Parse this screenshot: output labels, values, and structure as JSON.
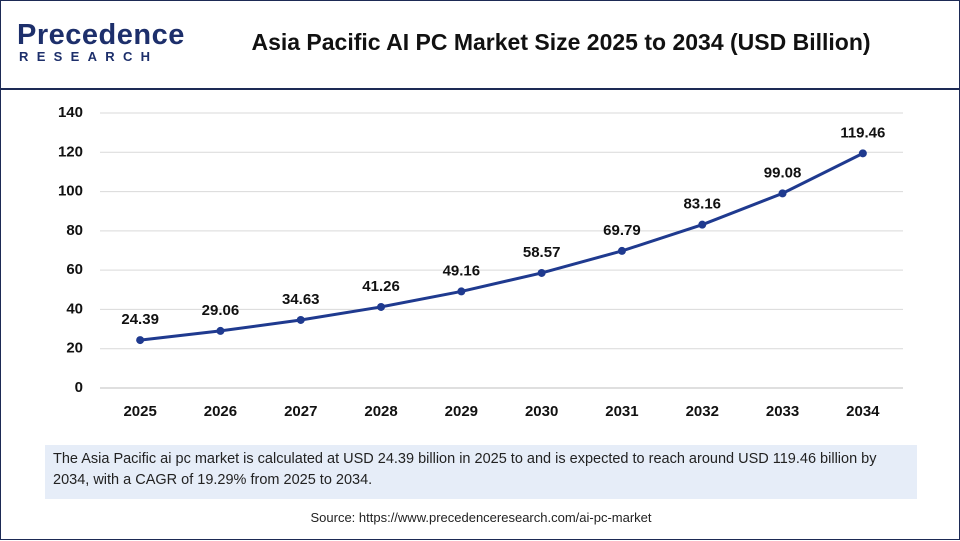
{
  "logo": {
    "name": "Precedence",
    "tagline": "RESEARCH"
  },
  "chart_data": {
    "type": "line",
    "title": "Asia Pacific AI PC Market Size 2025 to 2034 (USD Billion)",
    "categories": [
      "2025",
      "2026",
      "2027",
      "2028",
      "2029",
      "2030",
      "2031",
      "2032",
      "2033",
      "2034"
    ],
    "values": [
      24.39,
      29.06,
      34.63,
      41.26,
      49.16,
      58.57,
      69.79,
      83.16,
      99.08,
      119.46
    ],
    "color": "#1f3a8f",
    "ylim": [
      0,
      140
    ],
    "yticks": [
      0,
      20,
      40,
      60,
      80,
      100,
      120,
      140
    ],
    "grid": true
  },
  "description": "The Asia Pacific ai pc market is calculated at USD 24.39 billion in 2025 to and is expected to reach around USD 119.46 billion by 2034, with a CAGR of 19.29% from 2025 to 2034.",
  "source": "Source: https://www.precedenceresearch.com/ai-pc-market"
}
